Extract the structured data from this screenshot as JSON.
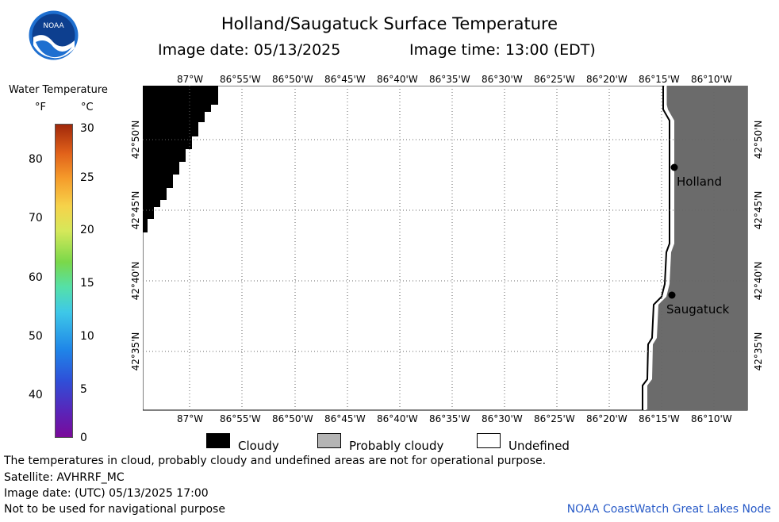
{
  "title": "Holland/Saugatuck Surface Temperature",
  "image_date_label": "Image date: 05/13/2025",
  "image_time_label": "Image time: 13:00 (EDT)",
  "logo_text": "NOAA",
  "colorbar": {
    "title": "Water Temperature",
    "unit_f": "°F",
    "unit_c": "°C",
    "f_ticks": [
      "80",
      "70",
      "60",
      "50",
      "40"
    ],
    "c_ticks": [
      "30",
      "25",
      "20",
      "15",
      "10",
      "5",
      "0"
    ]
  },
  "map": {
    "lon_labels": [
      "87°W",
      "86°55'W",
      "86°50'W",
      "86°45'W",
      "86°40'W",
      "86°35'W",
      "86°30'W",
      "86°25'W",
      "86°20'W",
      "86°15'W",
      "86°10'W"
    ],
    "lat_labels": [
      "42°50'N",
      "42°45'N",
      "42°40'N",
      "42°35'N"
    ],
    "places": [
      {
        "name": "Holland"
      },
      {
        "name": "Saugatuck"
      }
    ],
    "colors": {
      "cloudy": "#000000",
      "land": "#6b6b6b",
      "probably_cloudy": "#b4b4b4",
      "undefined": "#ffffff"
    }
  },
  "legend": {
    "cloudy": "Cloudy",
    "probably_cloudy": "Probably cloudy",
    "undefined": "Undefined"
  },
  "footer": {
    "line1": "The temperatures in cloud, probably cloudy and undefined areas are not for operational purpose.",
    "line2": "Satellite: AVHRRF_MC",
    "line3": "Image date: (UTC) 05/13/2025  17:00",
    "line4": "Not to be used for navigational purpose",
    "credit": "NOAA CoastWatch Great Lakes Node"
  }
}
